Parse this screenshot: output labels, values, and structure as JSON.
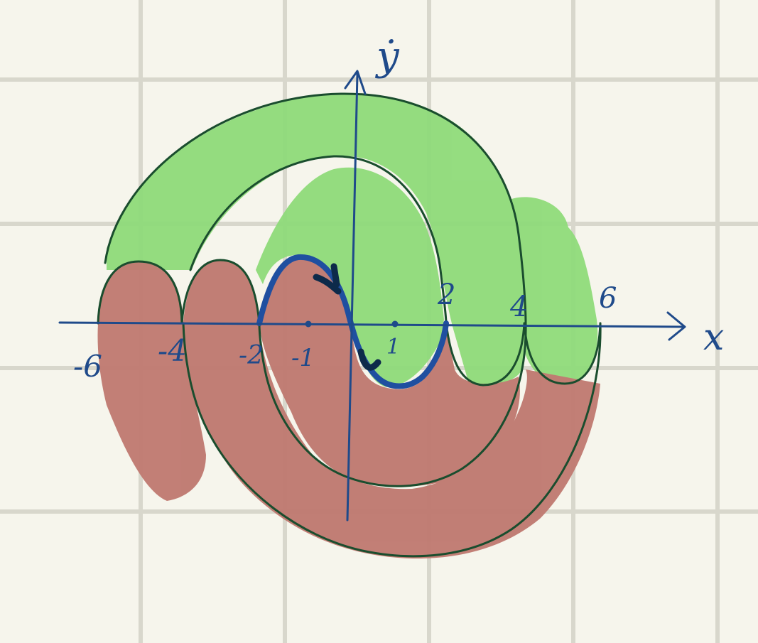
{
  "diagram": {
    "axes": {
      "x_label": "x",
      "y_label": "ẏ"
    },
    "ticks_above_axis": [
      "2",
      "4",
      "6"
    ],
    "ticks_below_axis": [
      "-6",
      "-4",
      "-2",
      "-1",
      "1"
    ],
    "colors": {
      "background": "#f6f5ec",
      "grid": "#d8d7cc",
      "axis": "#1f4a8a",
      "curve": "#1a4d2e",
      "green_fill": "#8fdb7a",
      "red_fill": "#c07b72",
      "highlight_curve": "#1f4fa0",
      "dark_marks": "#0d2a4a"
    }
  }
}
